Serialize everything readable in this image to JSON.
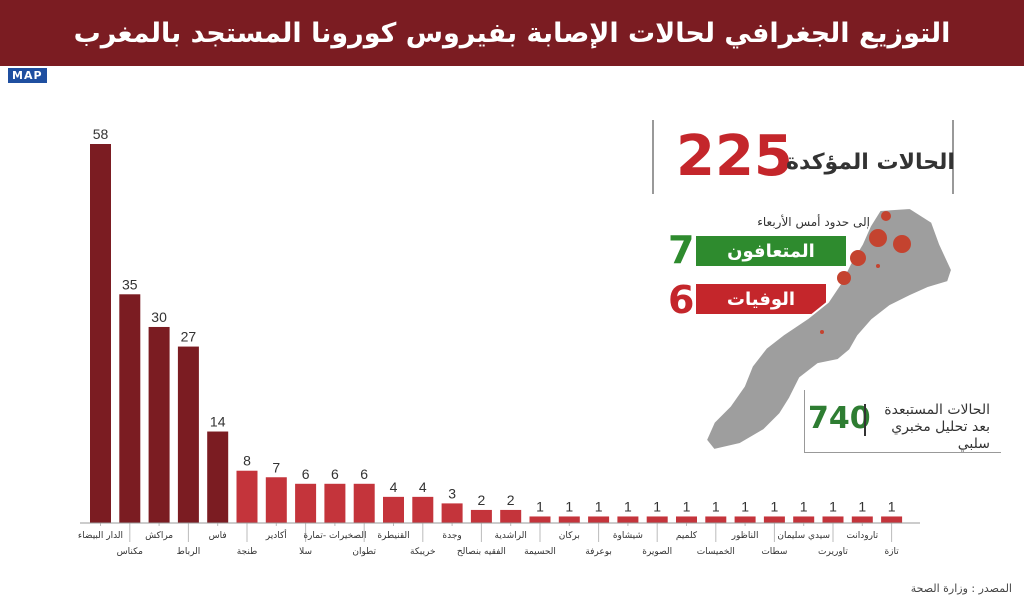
{
  "title": "التوزيع الجغرافي لحالات الإصابة بفيروس كورونا المستجد بالمغرب",
  "logo": "MAP",
  "confirmed": {
    "value": "225",
    "label": "الحالات المؤكدة"
  },
  "subtitle": "إلى حدود أمس الأربعاء",
  "recovered": {
    "value": "7",
    "label": "المتعافون",
    "color": "#2e8b2e"
  },
  "deaths": {
    "value": "6",
    "label": "الوفيات",
    "color": "#c4262b"
  },
  "excluded": {
    "value": "740",
    "label": "الحالات المستبعدة بعد تحليل مخبري سلبي"
  },
  "source": "المصدر : وزارة الصحة",
  "colors": {
    "dark_bar": "#7b1c22",
    "light_bar": "#c4343b",
    "title_bg": "#7b1c22"
  },
  "chart_data": {
    "type": "bar",
    "categories": [
      "الدار البيضاء",
      "مكناس",
      "مراكش",
      "الرباط",
      "فاس",
      "طنجة",
      "أكادير",
      "سلا",
      "الصخيرات -تمارة",
      "تطوان",
      "القنيطرة",
      "خريبكة",
      "وجدة",
      "الفقيه بنصالح",
      "الراشدية",
      "الحسيمة",
      "بركان",
      "بوعرفة",
      "شيشاوة",
      "الصويرة",
      "كلميم",
      "الخميسات",
      "الناظور",
      "سطات",
      "سيدي سليمان",
      "تاوريرت",
      "تارودانت",
      "تازة"
    ],
    "values": [
      58,
      35,
      30,
      27,
      14,
      8,
      7,
      6,
      6,
      6,
      4,
      4,
      3,
      2,
      2,
      1,
      1,
      1,
      1,
      1,
      1,
      1,
      1,
      1,
      1,
      1,
      1,
      1
    ],
    "value_labels": [
      "58",
      "35",
      "30",
      "27",
      "14",
      "8",
      "7",
      "6",
      "6",
      "6",
      "4",
      "4",
      "3",
      "2",
      "2",
      "1",
      "1",
      "1",
      "1",
      "1",
      "1",
      "1",
      "1",
      "1",
      "1",
      "1",
      "1",
      "1"
    ],
    "dark_count": 5
  }
}
